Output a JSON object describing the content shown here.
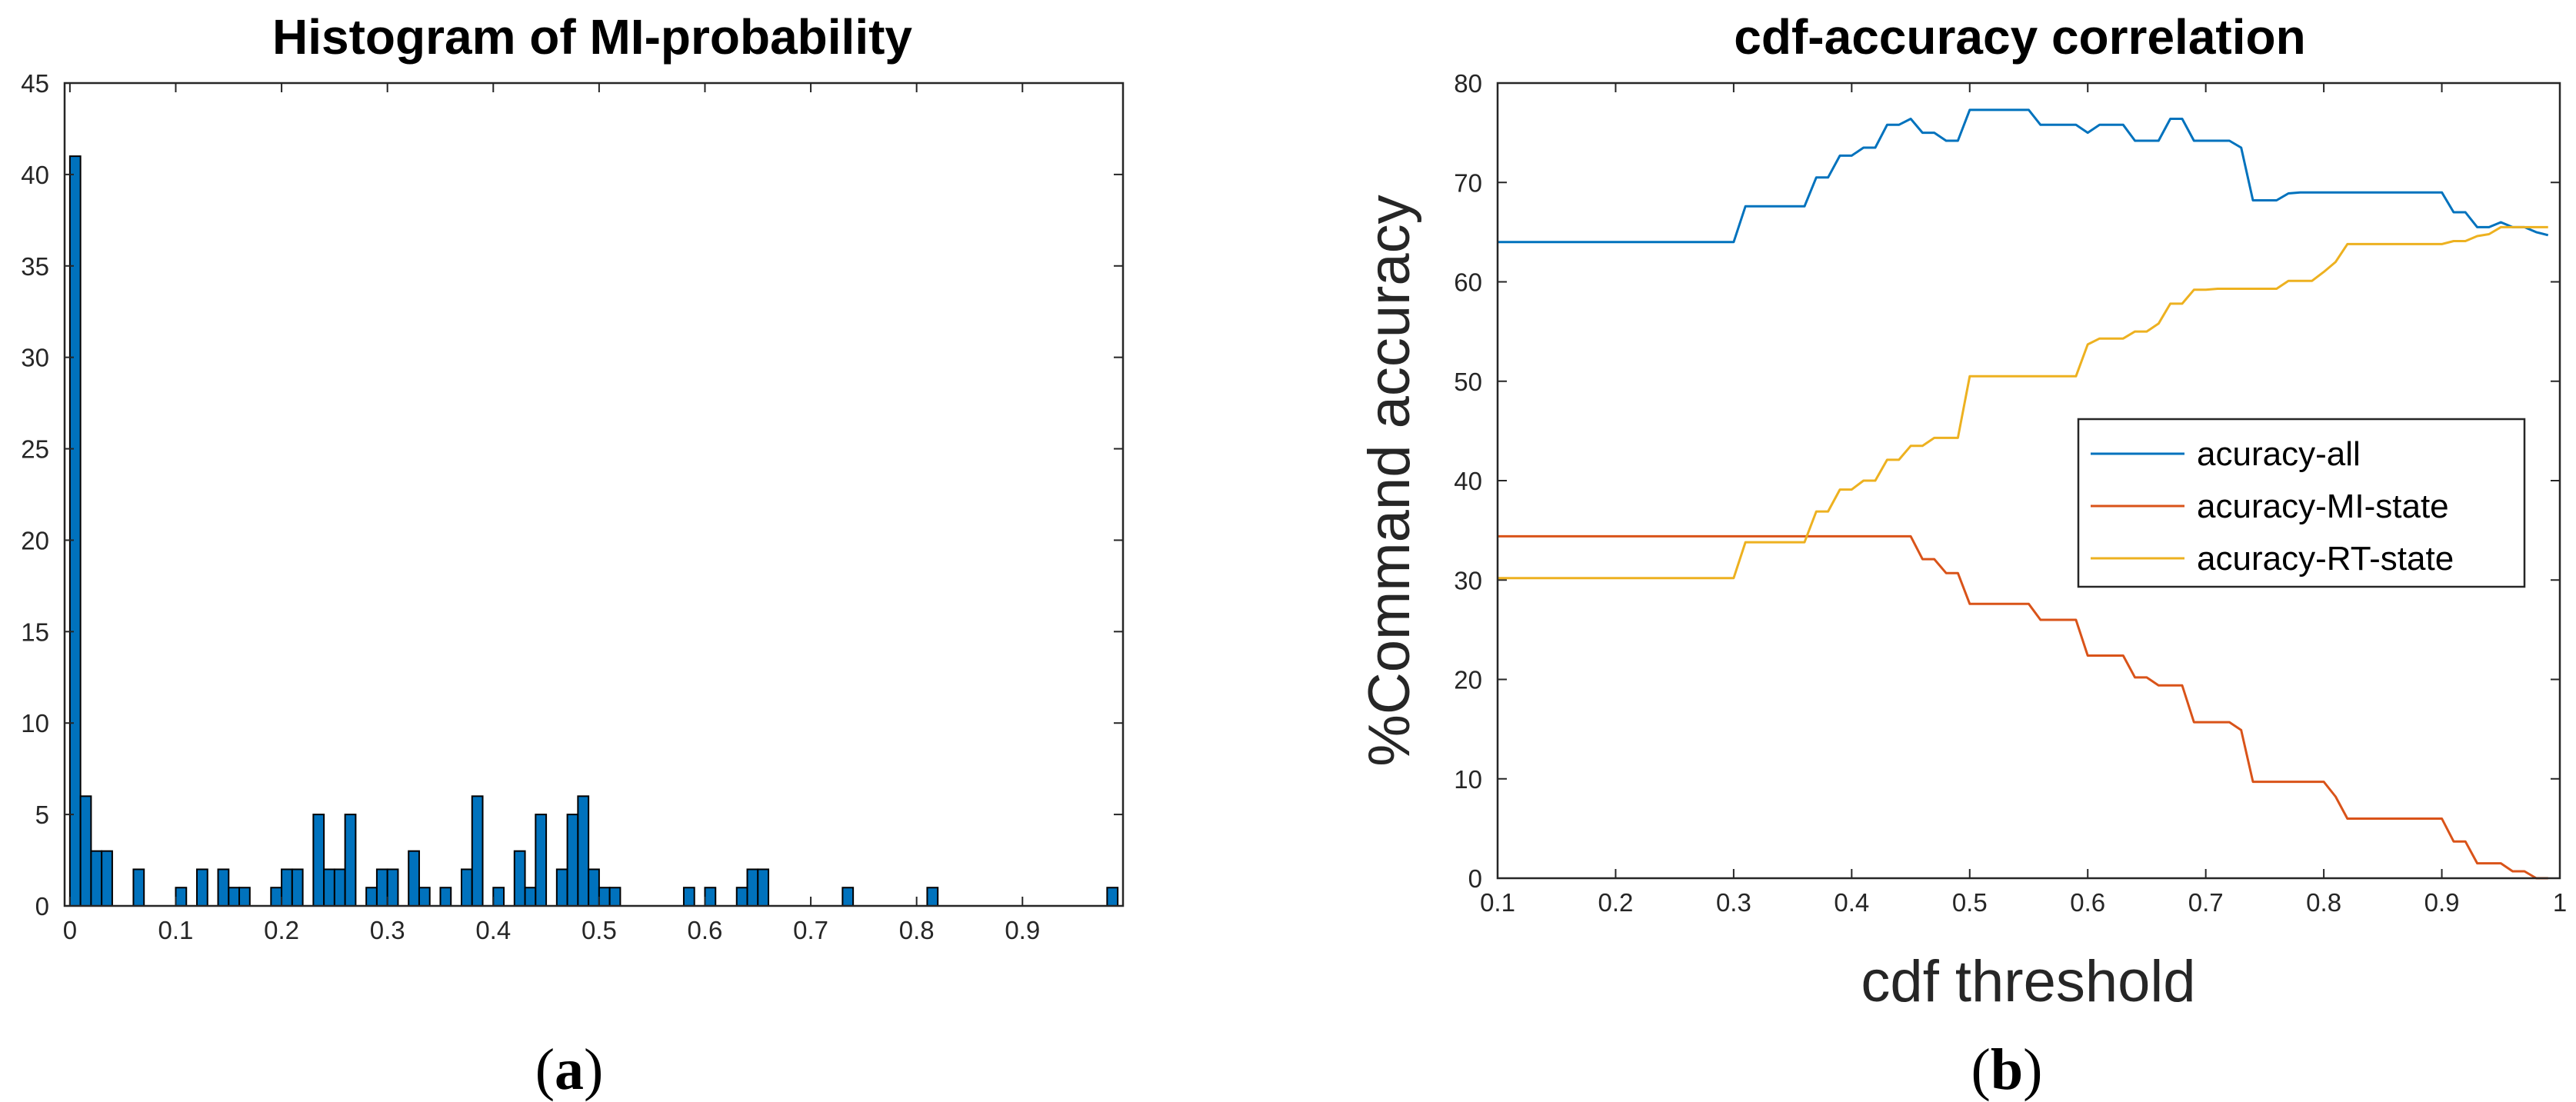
{
  "chart_data": [
    {
      "type": "bar",
      "title": "Histogram of MI-probability",
      "xlabel": "",
      "ylabel": "",
      "caption_open": "(",
      "caption_letter": "a",
      "caption_close": ")",
      "xlim": [
        -0.005,
        0.995
      ],
      "ylim": [
        0,
        45
      ],
      "xticks": [
        0,
        0.1,
        0.2,
        0.3,
        0.4,
        0.5,
        0.6,
        0.7,
        0.8,
        0.9
      ],
      "xtick_labels": [
        "0",
        "0.1",
        "0.2",
        "0.3",
        "0.4",
        "0.5",
        "0.6",
        "0.7",
        "0.8",
        "0.9"
      ],
      "yticks": [
        0,
        5,
        10,
        15,
        20,
        25,
        30,
        35,
        40,
        45
      ],
      "ytick_labels": [
        "0",
        "5",
        "10",
        "15",
        "20",
        "25",
        "30",
        "35",
        "40",
        "45"
      ],
      "bar_color": "#0072BD",
      "bin_width": 0.01,
      "bins": [
        {
          "x": 0.0,
          "count": 41
        },
        {
          "x": 0.01,
          "count": 6
        },
        {
          "x": 0.02,
          "count": 3
        },
        {
          "x": 0.03,
          "count": 3
        },
        {
          "x": 0.06,
          "count": 2
        },
        {
          "x": 0.1,
          "count": 1
        },
        {
          "x": 0.12,
          "count": 2
        },
        {
          "x": 0.14,
          "count": 2
        },
        {
          "x": 0.15,
          "count": 1
        },
        {
          "x": 0.16,
          "count": 1
        },
        {
          "x": 0.19,
          "count": 1
        },
        {
          "x": 0.2,
          "count": 2
        },
        {
          "x": 0.21,
          "count": 2
        },
        {
          "x": 0.23,
          "count": 5
        },
        {
          "x": 0.24,
          "count": 2
        },
        {
          "x": 0.25,
          "count": 2
        },
        {
          "x": 0.26,
          "count": 5
        },
        {
          "x": 0.28,
          "count": 1
        },
        {
          "x": 0.29,
          "count": 2
        },
        {
          "x": 0.3,
          "count": 2
        },
        {
          "x": 0.32,
          "count": 3
        },
        {
          "x": 0.33,
          "count": 1
        },
        {
          "x": 0.35,
          "count": 1
        },
        {
          "x": 0.37,
          "count": 2
        },
        {
          "x": 0.38,
          "count": 6
        },
        {
          "x": 0.4,
          "count": 1
        },
        {
          "x": 0.42,
          "count": 3
        },
        {
          "x": 0.43,
          "count": 1
        },
        {
          "x": 0.44,
          "count": 5
        },
        {
          "x": 0.46,
          "count": 2
        },
        {
          "x": 0.47,
          "count": 5
        },
        {
          "x": 0.48,
          "count": 6
        },
        {
          "x": 0.49,
          "count": 2
        },
        {
          "x": 0.5,
          "count": 1
        },
        {
          "x": 0.51,
          "count": 1
        },
        {
          "x": 0.58,
          "count": 1
        },
        {
          "x": 0.6,
          "count": 1
        },
        {
          "x": 0.63,
          "count": 1
        },
        {
          "x": 0.64,
          "count": 2
        },
        {
          "x": 0.65,
          "count": 2
        },
        {
          "x": 0.73,
          "count": 1
        },
        {
          "x": 0.81,
          "count": 1
        },
        {
          "x": 0.98,
          "count": 1
        }
      ]
    },
    {
      "type": "line",
      "title": "cdf-accuracy correlation",
      "xlabel": "cdf threshold",
      "ylabel": "%Command accuracy",
      "caption_open": "(",
      "caption_letter": "b",
      "caption_close": ")",
      "xlim": [
        0.1,
        1
      ],
      "ylim": [
        0,
        80
      ],
      "xticks": [
        0.1,
        0.2,
        0.3,
        0.4,
        0.5,
        0.6,
        0.7,
        0.8,
        0.9,
        1
      ],
      "xtick_labels": [
        "0.1",
        "0.2",
        "0.3",
        "0.4",
        "0.5",
        "0.6",
        "0.7",
        "0.8",
        "0.9",
        "1"
      ],
      "yticks": [
        0,
        10,
        20,
        30,
        40,
        50,
        60,
        70,
        80
      ],
      "ytick_labels": [
        "0",
        "10",
        "20",
        "30",
        "40",
        "50",
        "60",
        "70",
        "80"
      ],
      "legend_position": "middle-right",
      "series": [
        {
          "name": "acuracy-all",
          "color": "#0072BD",
          "x": [
            0.1,
            0.3,
            0.31,
            0.36,
            0.37,
            0.38,
            0.39,
            0.4,
            0.41,
            0.42,
            0.43,
            0.44,
            0.45,
            0.46,
            0.47,
            0.48,
            0.49,
            0.5,
            0.51,
            0.52,
            0.53,
            0.54,
            0.55,
            0.56,
            0.57,
            0.58,
            0.59,
            0.6,
            0.61,
            0.62,
            0.63,
            0.64,
            0.65,
            0.66,
            0.67,
            0.68,
            0.69,
            0.7,
            0.71,
            0.72,
            0.73,
            0.74,
            0.75,
            0.76,
            0.77,
            0.78,
            0.79,
            0.8,
            0.81,
            0.82,
            0.83,
            0.84,
            0.85,
            0.86,
            0.87,
            0.88,
            0.89,
            0.9,
            0.91,
            0.92,
            0.93,
            0.94,
            0.95,
            0.96,
            0.97,
            0.98,
            0.99
          ],
          "y": [
            64,
            64,
            67.6,
            67.6,
            70.5,
            70.5,
            72.7,
            72.7,
            73.5,
            73.5,
            75.8,
            75.8,
            76.4,
            75.0,
            75.0,
            74.2,
            74.2,
            77.3,
            77.3,
            77.3,
            77.3,
            77.3,
            77.3,
            75.8,
            75.8,
            75.8,
            75.8,
            75.0,
            75.8,
            75.8,
            75.8,
            74.2,
            74.2,
            74.2,
            76.4,
            76.4,
            74.2,
            74.2,
            74.2,
            74.2,
            73.5,
            68.2,
            68.2,
            68.2,
            68.9,
            69.0,
            69.0,
            69.0,
            69.0,
            69.0,
            69.0,
            69.0,
            69.0,
            69.0,
            69.0,
            69.0,
            69.0,
            69.0,
            67.0,
            67.0,
            65.5,
            65.5,
            66.0,
            65.5,
            65.5,
            65.0,
            64.7
          ]
        },
        {
          "name": "acuracy-MI-state",
          "color": "#D95319",
          "x": [
            0.1,
            0.45,
            0.46,
            0.47,
            0.48,
            0.49,
            0.5,
            0.51,
            0.55,
            0.56,
            0.57,
            0.58,
            0.59,
            0.6,
            0.61,
            0.62,
            0.63,
            0.64,
            0.65,
            0.66,
            0.67,
            0.68,
            0.69,
            0.7,
            0.71,
            0.72,
            0.73,
            0.74,
            0.75,
            0.79,
            0.8,
            0.81,
            0.82,
            0.88,
            0.89,
            0.9,
            0.91,
            0.92,
            0.93,
            0.94,
            0.95,
            0.96,
            0.97,
            0.98,
            0.99
          ],
          "y": [
            34.4,
            34.4,
            32.1,
            32.1,
            30.7,
            30.7,
            27.6,
            27.6,
            27.6,
            26.0,
            26.0,
            26.0,
            26.0,
            22.4,
            22.4,
            22.4,
            22.4,
            20.2,
            20.2,
            19.4,
            19.4,
            19.4,
            15.7,
            15.7,
            15.7,
            15.7,
            14.9,
            9.7,
            9.7,
            9.7,
            9.7,
            8.2,
            6.0,
            6.0,
            6.0,
            6.0,
            3.7,
            3.7,
            1.5,
            1.5,
            1.5,
            0.7,
            0.7,
            0.0,
            0.0
          ]
        },
        {
          "name": "acuracy-RT-state",
          "color": "#EDB120",
          "x": [
            0.1,
            0.3,
            0.31,
            0.36,
            0.37,
            0.38,
            0.39,
            0.4,
            0.41,
            0.42,
            0.43,
            0.44,
            0.45,
            0.46,
            0.47,
            0.48,
            0.49,
            0.5,
            0.51,
            0.59,
            0.6,
            0.61,
            0.62,
            0.63,
            0.64,
            0.65,
            0.66,
            0.67,
            0.68,
            0.69,
            0.7,
            0.71,
            0.72,
            0.73,
            0.74,
            0.75,
            0.76,
            0.77,
            0.78,
            0.79,
            0.8,
            0.81,
            0.82,
            0.83,
            0.84,
            0.9,
            0.91,
            0.92,
            0.93,
            0.94,
            0.95,
            0.96,
            0.97,
            0.98,
            0.99
          ],
          "y": [
            30.2,
            30.2,
            33.8,
            33.8,
            36.9,
            36.9,
            39.1,
            39.1,
            40.0,
            40.0,
            42.1,
            42.1,
            43.5,
            43.5,
            44.3,
            44.3,
            44.3,
            50.5,
            50.5,
            50.5,
            53.7,
            54.3,
            54.3,
            54.3,
            55.0,
            55.0,
            55.8,
            57.8,
            57.8,
            59.2,
            59.2,
            59.3,
            59.3,
            59.3,
            59.3,
            59.3,
            59.3,
            60.1,
            60.1,
            60.1,
            61.0,
            62.0,
            63.8,
            63.8,
            63.8,
            63.8,
            64.1,
            64.1,
            64.6,
            64.8,
            65.5,
            65.5,
            65.5,
            65.5,
            65.5
          ]
        }
      ]
    }
  ]
}
